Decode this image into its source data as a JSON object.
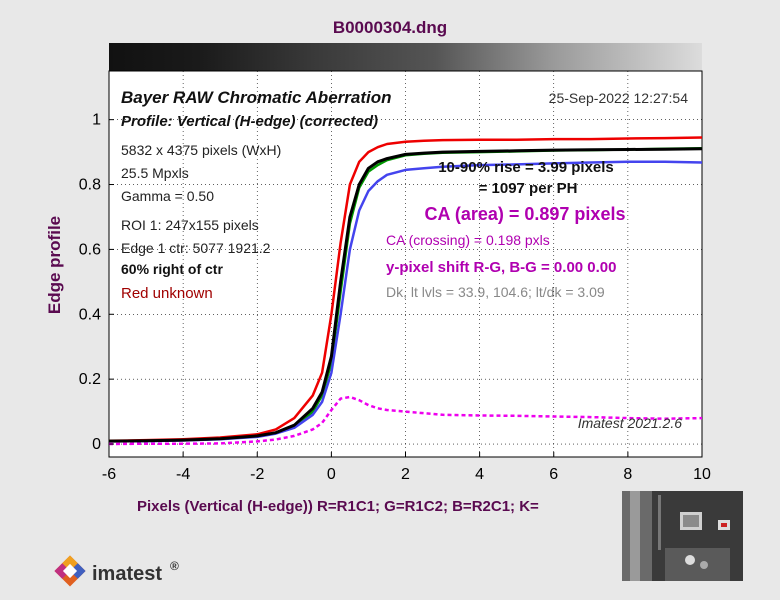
{
  "header": {
    "title": "B0000304.dng"
  },
  "annotations": {
    "chart_title": "Bayer RAW Chromatic Aberration",
    "profile": "Profile: Vertical (H-edge) (corrected)",
    "date": "25-Sep-2022 12:27:54",
    "info_lines": [
      "5832 x 4375 pixels (WxH)",
      "25.5 Mpxls",
      "Gamma = 0.50",
      "ROI 1: 247x155 pixels",
      "Edge 1 ctr: 5077  1921.2"
    ],
    "position": "60% right of ctr",
    "red_status": "Red unknown",
    "rise_line1": "10-90% rise = 3.99 pixels",
    "rise_line2": "= 1097 per PH",
    "ca_area": "CA (area) = 0.897 pixels",
    "ca_crossing": "CA (crossing) = 0.198 pxls",
    "pixel_shift": "y-pixel shift R-G, B-G = 0.00  0.00",
    "dk_levels": "Dk, lt lvls = 33.9, 104.6;  lt/dk = 3.09",
    "version": "Imatest 2021.2.6"
  },
  "footer": {
    "logo_text": "imatest",
    "logo_mark": "®"
  },
  "colors": {
    "red": "#ee0000",
    "green": "#009900",
    "blue": "#4444ee",
    "black": "#000000",
    "ca": "#ee00ee",
    "title": "#5a0a50"
  },
  "chart_data": {
    "type": "line",
    "xlabel": "Pixels (Vertical (H-edge))   R=R1C1; G=R1C2; B=R2C1; K=",
    "ylabel": "Edge profile",
    "xlim": [
      -6,
      10
    ],
    "ylim": [
      -0.04,
      1.15
    ],
    "xticks": [
      "-6",
      "-4",
      "-2",
      "0",
      "2",
      "4",
      "6",
      "8",
      "10"
    ],
    "yticks": [
      "0",
      "0.2",
      "0.4",
      "0.6",
      "0.8",
      "1"
    ],
    "grid": true,
    "x": [
      -6,
      -5,
      -4,
      -3,
      -2,
      -1.5,
      -1,
      -0.5,
      -0.25,
      0,
      0.25,
      0.5,
      0.75,
      1,
      1.25,
      1.5,
      2,
      2.5,
      3,
      4,
      5,
      6,
      7,
      8,
      9,
      10
    ],
    "series": [
      {
        "name": "R",
        "color": "#ee0000",
        "values": [
          0.01,
          0.012,
          0.015,
          0.02,
          0.03,
          0.045,
          0.08,
          0.15,
          0.22,
          0.4,
          0.62,
          0.8,
          0.87,
          0.9,
          0.915,
          0.925,
          0.932,
          0.935,
          0.937,
          0.938,
          0.938,
          0.94,
          0.94,
          0.942,
          0.943,
          0.945
        ]
      },
      {
        "name": "G",
        "color": "#009900",
        "values": [
          0.009,
          0.01,
          0.012,
          0.016,
          0.024,
          0.034,
          0.055,
          0.1,
          0.15,
          0.25,
          0.47,
          0.68,
          0.79,
          0.84,
          0.86,
          0.875,
          0.89,
          0.895,
          0.898,
          0.9,
          0.902,
          0.905,
          0.906,
          0.908,
          0.91,
          0.912
        ]
      },
      {
        "name": "B",
        "color": "#4444ee",
        "values": [
          0.008,
          0.009,
          0.011,
          0.015,
          0.022,
          0.032,
          0.05,
          0.09,
          0.13,
          0.22,
          0.4,
          0.6,
          0.72,
          0.78,
          0.81,
          0.83,
          0.845,
          0.85,
          0.855,
          0.86,
          0.862,
          0.865,
          0.868,
          0.87,
          0.87,
          0.868
        ]
      },
      {
        "name": "K",
        "color": "#000000",
        "values": [
          0.009,
          0.01,
          0.012,
          0.016,
          0.025,
          0.035,
          0.058,
          0.11,
          0.16,
          0.27,
          0.5,
          0.7,
          0.8,
          0.85,
          0.87,
          0.88,
          0.893,
          0.897,
          0.9,
          0.902,
          0.904,
          0.906,
          0.907,
          0.908,
          0.909,
          0.91
        ]
      },
      {
        "name": "CA",
        "color": "#ee00ee",
        "dashed": true,
        "values": [
          0.0,
          0.001,
          0.001,
          0.002,
          0.008,
          0.014,
          0.025,
          0.045,
          0.065,
          0.105,
          0.14,
          0.145,
          0.135,
          0.12,
          0.11,
          0.105,
          0.1,
          0.095,
          0.09,
          0.088,
          0.087,
          0.085,
          0.083,
          0.08,
          0.078,
          0.08
        ]
      }
    ]
  }
}
